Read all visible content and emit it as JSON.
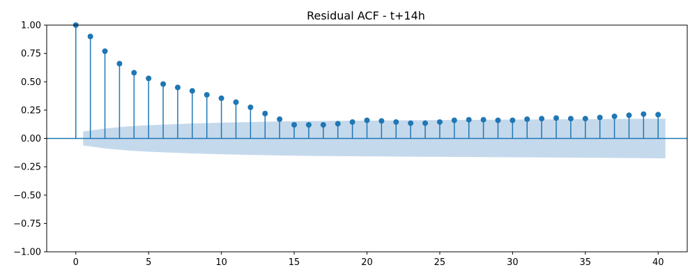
{
  "chart_data": {
    "type": "stem",
    "title": "Residual ACF - t+14h",
    "xlabel": "",
    "ylabel": "",
    "xlim": [
      -2,
      42
    ],
    "ylim": [
      -1.0,
      1.0
    ],
    "x_ticks": [
      0,
      5,
      10,
      15,
      20,
      25,
      30,
      35,
      40
    ],
    "y_ticks": [
      1.0,
      0.75,
      0.5,
      0.25,
      0.0,
      -0.25,
      -0.5,
      -0.75,
      -1.0
    ],
    "x_tick_labels": [
      "0",
      "5",
      "10",
      "15",
      "20",
      "25",
      "30",
      "35",
      "40"
    ],
    "y_tick_labels": [
      "1.00",
      "0.75",
      "0.50",
      "0.25",
      "0.00",
      "−0.25",
      "−0.50",
      "−0.75",
      "−1.00"
    ],
    "grid": false,
    "lags": [
      0,
      1,
      2,
      3,
      4,
      5,
      6,
      7,
      8,
      9,
      10,
      11,
      12,
      13,
      14,
      15,
      16,
      17,
      18,
      19,
      20,
      21,
      22,
      23,
      24,
      25,
      26,
      27,
      28,
      29,
      30,
      31,
      32,
      33,
      34,
      35,
      36,
      37,
      38,
      39,
      40
    ],
    "acf": [
      1.0,
      0.9,
      0.77,
      0.66,
      0.58,
      0.53,
      0.48,
      0.45,
      0.42,
      0.385,
      0.355,
      0.32,
      0.275,
      0.22,
      0.17,
      0.12,
      0.12,
      0.12,
      0.13,
      0.145,
      0.16,
      0.155,
      0.145,
      0.135,
      0.135,
      0.145,
      0.16,
      0.165,
      0.165,
      0.16,
      0.16,
      0.17,
      0.175,
      0.18,
      0.175,
      0.175,
      0.185,
      0.195,
      0.205,
      0.215,
      0.21
    ],
    "confidence_band": {
      "x": [
        0.5,
        1,
        2,
        3,
        4,
        5,
        6,
        7,
        8,
        10,
        12,
        14,
        16,
        20,
        25,
        30,
        35,
        40.5
      ],
      "upper": [
        0.062,
        0.07,
        0.088,
        0.1,
        0.11,
        0.117,
        0.122,
        0.127,
        0.132,
        0.139,
        0.145,
        0.15,
        0.154,
        0.158,
        0.162,
        0.166,
        0.17,
        0.175
      ]
    },
    "colors": {
      "stem": "#1f77b4",
      "band": "#c5d9ec",
      "zero_line": "#1f77b4"
    }
  }
}
